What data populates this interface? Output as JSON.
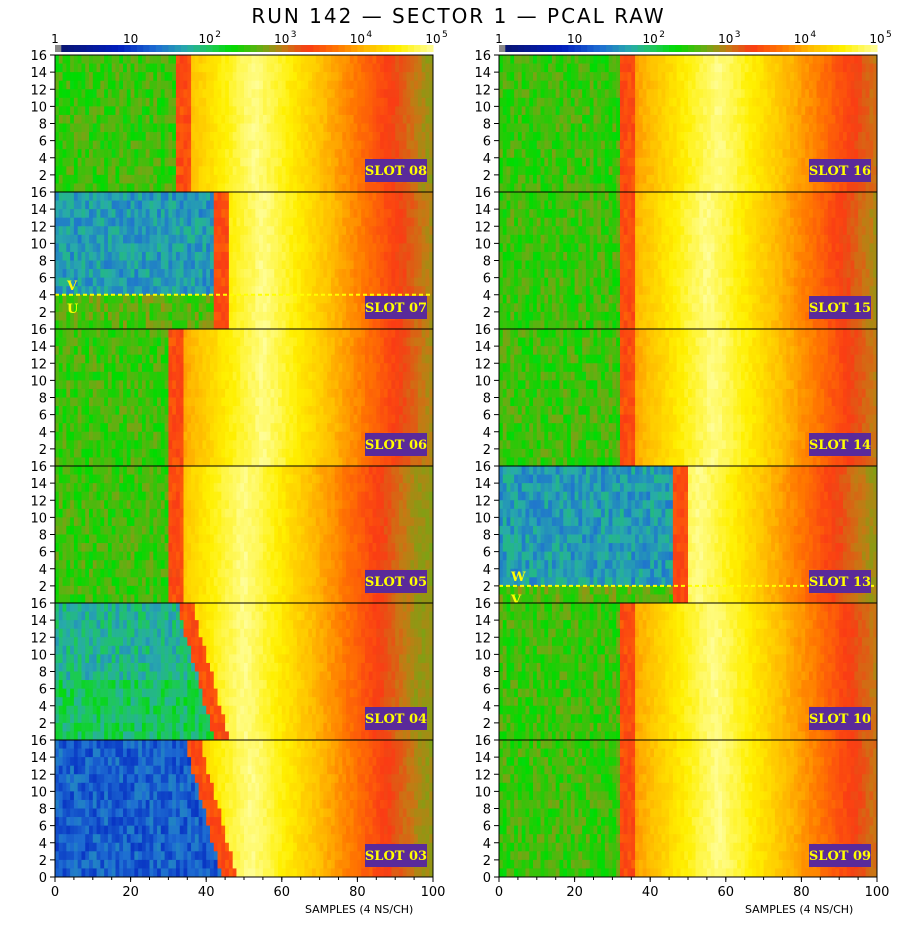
{
  "title": "RUN 142 — SECTOR 1 — PCAL RAW",
  "colorscale": {
    "labels": [
      "1",
      "10",
      "10",
      "10",
      "10",
      "10"
    ],
    "exponents": [
      "",
      "",
      "2",
      "3",
      "4",
      "5"
    ],
    "colors": [
      "#ffffff",
      "#1a1a80",
      "#0000c8",
      "#2060ff",
      "#1a8cd0",
      "#20b0a0",
      "#20c060",
      "#40d040",
      "#00e000",
      "#60d000",
      "#b0b000",
      "#e08000",
      "#ff4020",
      "#ff7000",
      "#ffb000",
      "#ffee00",
      "#ffff80"
    ]
  },
  "panels": {
    "left": {
      "xlabel": "SAMPLES (4 NS/CH)"
    },
    "right": {
      "xlabel": "SAMPLES (4 NS/CH)"
    }
  },
  "chart_data": {
    "type": "heatmap",
    "xlim": [
      0,
      100
    ],
    "ylim": [
      0,
      16
    ],
    "x_ticks": [
      "0",
      "20",
      "40",
      "60",
      "80",
      "100"
    ],
    "y_ticks": [
      "0",
      "2",
      "4",
      "6",
      "8",
      "10",
      "12",
      "14",
      "16"
    ],
    "y_ticks_upper": [
      "2",
      "4",
      "6",
      "8",
      "10",
      "12",
      "14",
      "16"
    ],
    "z_scale": "log",
    "z_range": [
      1,
      100000
    ],
    "left_column": [
      {
        "slot": "SLOT 08",
        "peak_x": 53,
        "left_edge_x": 32,
        "level": "high"
      },
      {
        "slot": "SLOT 07",
        "peak_x": 55,
        "left_edge_x": 42,
        "level": "mixed",
        "divider_y": 4,
        "upper_tag": "V",
        "lower_tag": "U"
      },
      {
        "slot": "SLOT 06",
        "peak_x": 55,
        "left_edge_x": 30,
        "level": "high"
      },
      {
        "slot": "SLOT 05",
        "peak_x": 50,
        "left_edge_x": 30,
        "level": "high"
      },
      {
        "slot": "SLOT 04",
        "peak_x": 50,
        "left_edge_x": 42,
        "level": "medium"
      },
      {
        "slot": "SLOT 03",
        "peak_x": 52,
        "left_edge_x": 44,
        "level": "low"
      }
    ],
    "right_column": [
      {
        "slot": "SLOT 16",
        "peak_x": 58,
        "left_edge_x": 32,
        "level": "high"
      },
      {
        "slot": "SLOT 15",
        "peak_x": 55,
        "left_edge_x": 32,
        "level": "high"
      },
      {
        "slot": "SLOT 14",
        "peak_x": 57,
        "left_edge_x": 32,
        "level": "high"
      },
      {
        "slot": "SLOT 13",
        "peak_x": 53,
        "left_edge_x": 46,
        "level": "mixed",
        "divider_y": 2,
        "upper_tag": "W",
        "lower_tag": "V"
      },
      {
        "slot": "SLOT 10",
        "peak_x": 57,
        "left_edge_x": 32,
        "level": "high"
      },
      {
        "slot": "SLOT 09",
        "peak_x": 58,
        "left_edge_x": 32,
        "level": "high"
      }
    ]
  }
}
